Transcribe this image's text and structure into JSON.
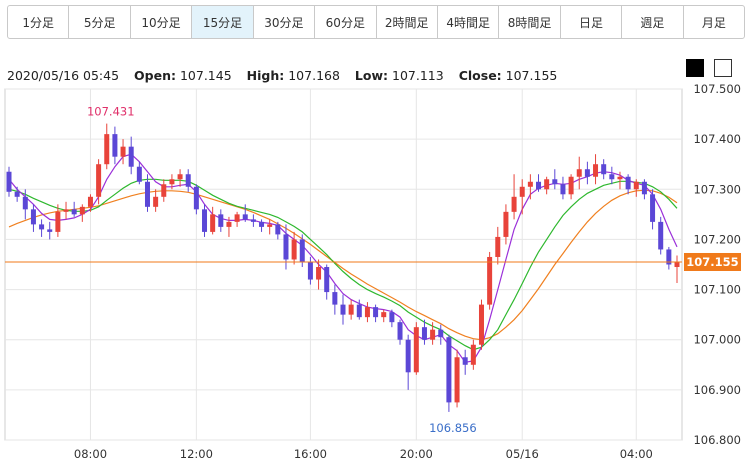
{
  "tabs": [
    {
      "label": "1分足",
      "active": false
    },
    {
      "label": "5分足",
      "active": false
    },
    {
      "label": "10分足",
      "active": false
    },
    {
      "label": "15分足",
      "active": true
    },
    {
      "label": "30分足",
      "active": false
    },
    {
      "label": "60分足",
      "active": false
    },
    {
      "label": "2時間足",
      "active": false
    },
    {
      "label": "4時間足",
      "active": false
    },
    {
      "label": "8時間足",
      "active": false
    },
    {
      "label": "日足",
      "active": false
    },
    {
      "label": "週足",
      "active": false
    },
    {
      "label": "月足",
      "active": false
    }
  ],
  "ohlc": {
    "datetime": "2020/05/16 05:45",
    "open_label": "Open:",
    "open": "107.145",
    "high_label": "High:",
    "high": "107.168",
    "low_label": "Low:",
    "low": "107.113",
    "close_label": "Close:",
    "close": "107.155"
  },
  "theme_buttons": [
    {
      "name": "black-theme"
    },
    {
      "name": "white-theme"
    }
  ],
  "chart_data": {
    "type": "candlestick",
    "ylim": [
      106.8,
      107.5
    ],
    "yticks": [
      "107.500",
      "107.400",
      "107.300",
      "107.200",
      "107.100",
      "107.000",
      "106.900",
      "106.800"
    ],
    "xticks": [
      {
        "label": "08:00",
        "index": 10
      },
      {
        "label": "12:00",
        "index": 23
      },
      {
        "label": "16:00",
        "index": 37
      },
      {
        "label": "20:00",
        "index": 50
      },
      {
        "label": "05/16",
        "index": 63
      },
      {
        "label": "04:00",
        "index": 77
      }
    ],
    "current_price": "107.155",
    "high_annotation": "107.431",
    "low_annotation": "106.856",
    "colors": {
      "up": "#e8433a",
      "down": "#5b47d6",
      "ma_short": "#9b30d9",
      "ma_mid": "#2eb82e",
      "ma_long": "#f08020",
      "price_line": "#f07a1a",
      "price_label_bg": "#f07a1a"
    },
    "candles": [
      [
        107.335,
        107.345,
        107.285,
        107.295
      ],
      [
        107.295,
        107.305,
        107.275,
        107.285
      ],
      [
        107.285,
        107.3,
        107.24,
        107.26
      ],
      [
        107.26,
        107.27,
        107.215,
        107.23
      ],
      [
        107.23,
        107.24,
        107.205,
        107.22
      ],
      [
        107.22,
        107.235,
        107.2,
        107.215
      ],
      [
        107.215,
        107.27,
        107.205,
        107.255
      ],
      [
        107.255,
        107.275,
        107.24,
        107.26
      ],
      [
        107.26,
        107.275,
        107.245,
        107.25
      ],
      [
        107.25,
        107.27,
        107.235,
        107.265
      ],
      [
        107.265,
        107.29,
        107.255,
        107.285
      ],
      [
        107.285,
        107.36,
        107.27,
        107.35
      ],
      [
        107.35,
        107.431,
        107.34,
        107.41
      ],
      [
        107.41,
        107.425,
        107.35,
        107.365
      ],
      [
        107.365,
        107.4,
        107.35,
        107.385
      ],
      [
        107.385,
        107.405,
        107.33,
        107.345
      ],
      [
        107.345,
        107.355,
        107.31,
        107.315
      ],
      [
        107.315,
        107.33,
        107.255,
        107.265
      ],
      [
        107.265,
        107.3,
        107.255,
        107.285
      ],
      [
        107.285,
        107.32,
        107.275,
        107.31
      ],
      [
        107.31,
        107.33,
        107.3,
        107.32
      ],
      [
        107.32,
        107.34,
        107.305,
        107.33
      ],
      [
        107.33,
        107.34,
        107.295,
        107.305
      ],
      [
        107.305,
        107.31,
        107.25,
        107.26
      ],
      [
        107.26,
        107.27,
        107.205,
        107.215
      ],
      [
        107.215,
        107.265,
        107.21,
        107.25
      ],
      [
        107.25,
        107.26,
        107.215,
        107.225
      ],
      [
        107.225,
        107.245,
        107.205,
        107.235
      ],
      [
        107.235,
        107.255,
        107.225,
        107.25
      ],
      [
        107.25,
        107.27,
        107.235,
        107.24
      ],
      [
        107.24,
        107.25,
        107.225,
        107.235
      ],
      [
        107.235,
        107.24,
        107.215,
        107.225
      ],
      [
        107.225,
        107.24,
        107.21,
        107.23
      ],
      [
        107.23,
        107.235,
        107.2,
        107.21
      ],
      [
        107.21,
        107.23,
        107.14,
        107.16
      ],
      [
        107.16,
        107.215,
        107.15,
        107.2
      ],
      [
        107.2,
        107.21,
        107.145,
        107.155
      ],
      [
        107.155,
        107.165,
        107.11,
        107.12
      ],
      [
        107.12,
        107.16,
        107.1,
        107.145
      ],
      [
        107.145,
        107.15,
        107.08,
        107.095
      ],
      [
        107.095,
        107.11,
        107.05,
        107.07
      ],
      [
        107.07,
        107.09,
        107.03,
        107.05
      ],
      [
        107.05,
        107.08,
        107.04,
        107.07
      ],
      [
        107.07,
        107.08,
        107.04,
        107.045
      ],
      [
        107.045,
        107.075,
        107.035,
        107.065
      ],
      [
        107.065,
        107.07,
        107.035,
        107.045
      ],
      [
        107.045,
        107.06,
        107.035,
        107.055
      ],
      [
        107.055,
        107.06,
        107.025,
        107.035
      ],
      [
        107.035,
        107.04,
        106.99,
        107.0
      ],
      [
        107.0,
        107.01,
        106.9,
        106.935
      ],
      [
        106.935,
        107.035,
        106.93,
        107.025
      ],
      [
        107.025,
        107.04,
        106.99,
        107.0
      ],
      [
        107.0,
        107.035,
        106.99,
        107.02
      ],
      [
        107.02,
        107.03,
        106.99,
        107.005
      ],
      [
        107.005,
        107.01,
        106.856,
        106.875
      ],
      [
        106.875,
        106.98,
        106.865,
        106.965
      ],
      [
        106.965,
        106.98,
        106.93,
        106.95
      ],
      [
        106.95,
        107.0,
        106.94,
        106.99
      ],
      [
        106.99,
        107.08,
        106.98,
        107.07
      ],
      [
        107.07,
        107.175,
        107.06,
        107.165
      ],
      [
        107.165,
        107.225,
        107.15,
        107.205
      ],
      [
        107.205,
        107.27,
        107.19,
        107.255
      ],
      [
        107.255,
        107.33,
        107.24,
        107.285
      ],
      [
        107.285,
        107.32,
        107.25,
        107.305
      ],
      [
        107.305,
        107.33,
        107.28,
        107.315
      ],
      [
        107.315,
        107.33,
        107.295,
        107.3
      ],
      [
        107.3,
        107.325,
        107.29,
        107.32
      ],
      [
        107.32,
        107.34,
        107.3,
        107.31
      ],
      [
        107.31,
        107.325,
        107.28,
        107.29
      ],
      [
        107.29,
        107.33,
        107.28,
        107.325
      ],
      [
        107.325,
        107.365,
        107.3,
        107.34
      ],
      [
        107.34,
        107.355,
        107.31,
        107.325
      ],
      [
        107.325,
        107.37,
        107.31,
        107.35
      ],
      [
        107.35,
        107.36,
        107.32,
        107.33
      ],
      [
        107.33,
        107.345,
        107.31,
        107.32
      ],
      [
        107.32,
        107.335,
        107.3,
        107.325
      ],
      [
        107.325,
        107.33,
        107.29,
        107.3
      ],
      [
        107.3,
        107.32,
        107.285,
        107.315
      ],
      [
        107.315,
        107.32,
        107.28,
        107.29
      ],
      [
        107.29,
        107.3,
        107.22,
        107.235
      ],
      [
        107.235,
        107.245,
        107.17,
        107.18
      ],
      [
        107.18,
        107.185,
        107.14,
        107.15
      ],
      [
        107.145,
        107.168,
        107.113,
        107.155
      ]
    ],
    "ma_short": [
      107.32,
      107.3,
      107.285,
      107.27,
      107.252,
      107.24,
      107.238,
      107.24,
      107.243,
      107.25,
      107.26,
      107.285,
      107.32,
      107.345,
      107.365,
      107.37,
      107.355,
      107.335,
      107.315,
      107.305,
      107.305,
      107.308,
      107.31,
      107.295,
      107.27,
      107.25,
      107.242,
      107.238,
      107.238,
      107.24,
      107.238,
      107.234,
      107.232,
      107.228,
      107.212,
      107.2,
      107.188,
      107.17,
      107.15,
      107.135,
      107.112,
      107.092,
      107.08,
      107.072,
      107.065,
      107.062,
      107.06,
      107.056,
      107.045,
      107.02,
      107.008,
      107.0,
      107.005,
      107.01,
      106.99,
      106.978,
      106.955,
      106.958,
      106.985,
      107.04,
      107.1,
      107.16,
      107.22,
      107.26,
      107.29,
      107.302,
      107.308,
      107.312,
      107.31,
      107.312,
      107.32,
      107.325,
      107.332,
      107.335,
      107.333,
      107.328,
      107.318,
      107.312,
      107.308,
      107.29,
      107.26,
      107.22,
      107.185
    ],
    "ma_mid": [
      107.3,
      107.296,
      107.29,
      107.282,
      107.275,
      107.268,
      107.262,
      107.258,
      107.256,
      107.256,
      107.258,
      107.265,
      107.278,
      107.29,
      107.302,
      107.312,
      107.318,
      107.32,
      107.32,
      107.318,
      107.318,
      107.318,
      107.316,
      107.308,
      107.298,
      107.288,
      107.28,
      107.272,
      107.266,
      107.262,
      107.258,
      107.254,
      107.25,
      107.244,
      107.235,
      107.226,
      107.215,
      107.2,
      107.185,
      107.17,
      107.152,
      107.136,
      107.122,
      107.11,
      107.1,
      107.092,
      107.085,
      107.077,
      107.068,
      107.055,
      107.045,
      107.035,
      107.027,
      107.02,
      107.008,
      106.998,
      106.988,
      106.98,
      106.985,
      107.0,
      107.02,
      107.05,
      107.08,
      107.112,
      107.145,
      107.175,
      107.2,
      107.225,
      107.248,
      107.265,
      107.28,
      107.292,
      107.3,
      107.308,
      107.312,
      107.316,
      107.316,
      107.314,
      107.312,
      107.305,
      107.295,
      107.28,
      107.262
    ],
    "ma_long": [
      107.225,
      107.232,
      107.238,
      107.244,
      107.249,
      107.253,
      107.256,
      107.258,
      107.26,
      107.262,
      107.264,
      107.267,
      107.272,
      107.277,
      107.282,
      107.287,
      107.291,
      107.294,
      107.296,
      107.297,
      107.297,
      107.296,
      107.294,
      107.29,
      107.285,
      107.28,
      107.275,
      107.27,
      107.265,
      107.26,
      107.254,
      107.247,
      107.24,
      107.231,
      107.222,
      107.212,
      107.201,
      107.19,
      107.178,
      107.166,
      107.154,
      107.142,
      107.131,
      107.121,
      107.111,
      107.102,
      107.093,
      107.084,
      107.075,
      107.065,
      107.056,
      107.048,
      107.04,
      107.032,
      107.022,
      107.014,
      107.007,
      107.002,
      107.0,
      107.004,
      107.012,
      107.025,
      107.04,
      107.058,
      107.08,
      107.102,
      107.126,
      107.15,
      107.172,
      107.194,
      107.215,
      107.235,
      107.252,
      107.266,
      107.278,
      107.287,
      107.293,
      107.297,
      107.298,
      107.297,
      107.292,
      107.284,
      107.273
    ]
  }
}
